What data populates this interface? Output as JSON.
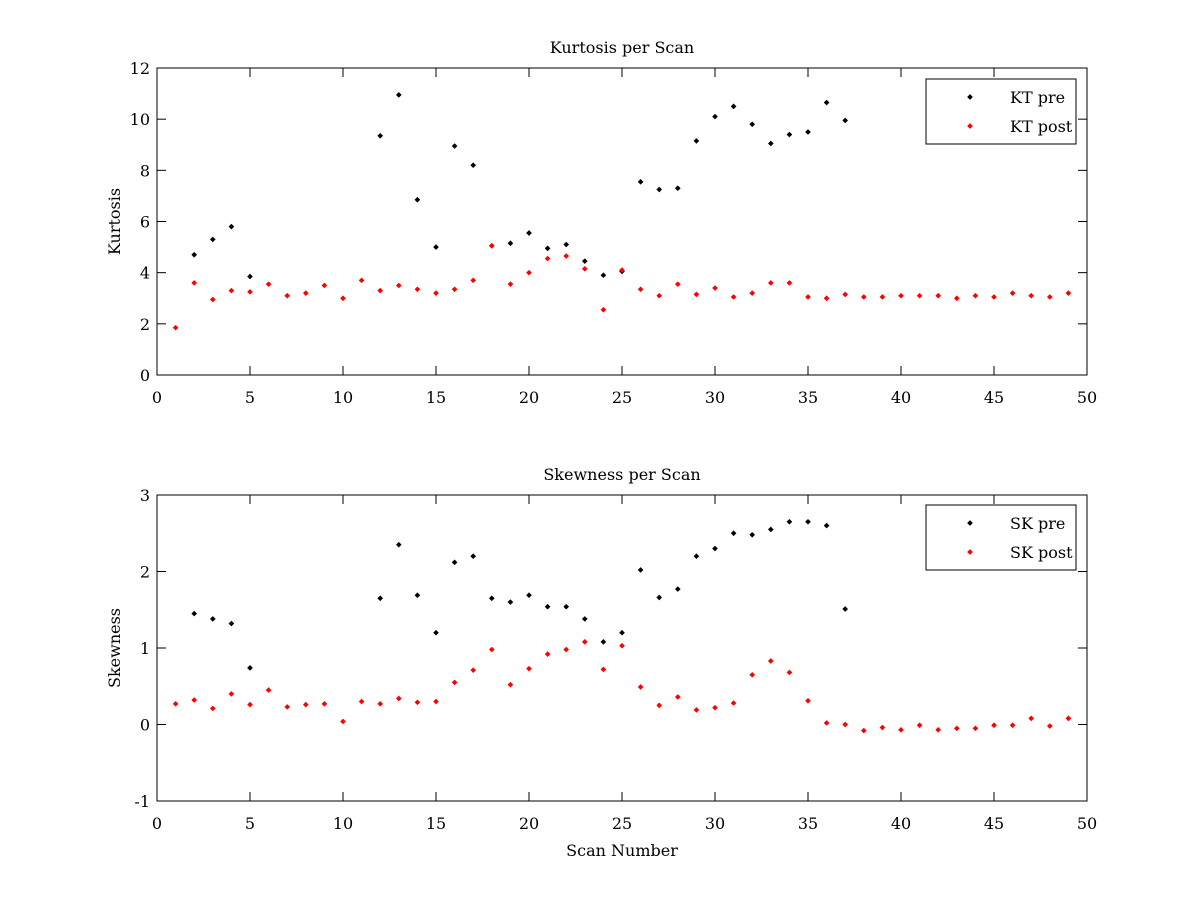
{
  "chart_data": [
    {
      "type": "scatter",
      "title": "Kurtosis per Scan",
      "xlabel": "",
      "ylabel": "Kurtosis",
      "xlim": [
        0,
        50
      ],
      "ylim": [
        0,
        12
      ],
      "xticks": [
        0,
        5,
        10,
        15,
        20,
        25,
        30,
        35,
        40,
        45,
        50
      ],
      "yticks": [
        0,
        2,
        4,
        6,
        8,
        10,
        12
      ],
      "grid": false,
      "legend_position": "top-right",
      "series": [
        {
          "name": "KT pre",
          "color": "#000000",
          "x": [
            2,
            3,
            4,
            5,
            12,
            13,
            14,
            15,
            16,
            17,
            18,
            19,
            20,
            21,
            22,
            23,
            24,
            25,
            26,
            27,
            28,
            29,
            30,
            31,
            32,
            33,
            34,
            35,
            36,
            37
          ],
          "y": [
            4.7,
            5.3,
            5.8,
            3.85,
            9.35,
            10.95,
            6.85,
            5.0,
            8.95,
            8.2,
            5.05,
            5.15,
            5.55,
            4.95,
            5.1,
            4.45,
            3.9,
            4.05,
            7.55,
            7.25,
            7.3,
            9.15,
            10.1,
            10.5,
            9.8,
            9.05,
            9.4,
            9.5,
            10.65,
            9.95
          ]
        },
        {
          "name": "KT post",
          "color": "#ff0000",
          "x": [
            1,
            2,
            3,
            4,
            5,
            6,
            7,
            8,
            9,
            10,
            11,
            12,
            13,
            14,
            15,
            16,
            17,
            18,
            19,
            20,
            21,
            22,
            23,
            24,
            25,
            26,
            27,
            28,
            29,
            30,
            31,
            32,
            33,
            34,
            35,
            36,
            37,
            38,
            39,
            40,
            41,
            42,
            43,
            44,
            45,
            46,
            47,
            48,
            49
          ],
          "y": [
            1.85,
            3.6,
            2.95,
            3.3,
            3.25,
            3.55,
            3.1,
            3.2,
            3.5,
            3.0,
            3.7,
            3.3,
            3.5,
            3.35,
            3.2,
            3.35,
            3.7,
            5.05,
            3.55,
            4.0,
            4.55,
            4.65,
            4.15,
            2.55,
            4.1,
            3.35,
            3.1,
            3.55,
            3.15,
            3.4,
            3.05,
            3.2,
            3.6,
            3.6,
            3.05,
            3.0,
            3.15,
            3.05,
            3.05,
            3.1,
            3.1,
            3.1,
            3.0,
            3.1,
            3.05,
            3.2,
            3.1,
            3.05,
            3.2
          ]
        }
      ]
    },
    {
      "type": "scatter",
      "title": "Skewness per Scan",
      "xlabel": "Scan Number",
      "ylabel": "Skewness",
      "xlim": [
        0,
        50
      ],
      "ylim": [
        -1,
        3
      ],
      "xticks": [
        0,
        5,
        10,
        15,
        20,
        25,
        30,
        35,
        40,
        45,
        50
      ],
      "yticks": [
        -1,
        0,
        1,
        2,
        3
      ],
      "grid": false,
      "legend_position": "top-right",
      "series": [
        {
          "name": "SK pre",
          "color": "#000000",
          "x": [
            2,
            3,
            4,
            5,
            12,
            13,
            14,
            15,
            16,
            17,
            18,
            19,
            20,
            21,
            22,
            23,
            24,
            25,
            26,
            27,
            28,
            29,
            30,
            31,
            32,
            33,
            34,
            35,
            36,
            37
          ],
          "y": [
            1.45,
            1.38,
            1.32,
            0.74,
            1.65,
            2.35,
            1.69,
            1.2,
            2.12,
            2.2,
            1.65,
            1.6,
            1.69,
            1.54,
            1.54,
            1.38,
            1.08,
            1.2,
            2.02,
            1.66,
            1.77,
            2.2,
            2.3,
            2.5,
            2.48,
            2.55,
            2.65,
            2.65,
            2.6,
            1.51
          ]
        },
        {
          "name": "SK post",
          "color": "#ff0000",
          "x": [
            1,
            2,
            3,
            4,
            5,
            6,
            7,
            8,
            9,
            10,
            11,
            12,
            13,
            14,
            15,
            16,
            17,
            18,
            19,
            20,
            21,
            22,
            23,
            24,
            25,
            26,
            27,
            28,
            29,
            30,
            31,
            32,
            33,
            34,
            35,
            36,
            37,
            38,
            39,
            40,
            41,
            42,
            43,
            44,
            45,
            46,
            47,
            48,
            49
          ],
          "y": [
            0.27,
            0.32,
            0.21,
            0.4,
            0.26,
            0.45,
            0.23,
            0.26,
            0.27,
            0.04,
            0.3,
            0.27,
            0.34,
            0.29,
            0.3,
            0.55,
            0.71,
            0.98,
            0.52,
            0.73,
            0.92,
            0.98,
            1.08,
            0.72,
            1.03,
            0.49,
            0.25,
            0.36,
            0.19,
            0.22,
            0.28,
            0.65,
            0.83,
            0.68,
            0.31,
            0.02,
            0.0,
            -0.08,
            -0.04,
            -0.07,
            -0.01,
            -0.07,
            -0.05,
            -0.05,
            -0.01,
            -0.01,
            0.08,
            -0.02,
            0.08
          ]
        }
      ]
    }
  ]
}
